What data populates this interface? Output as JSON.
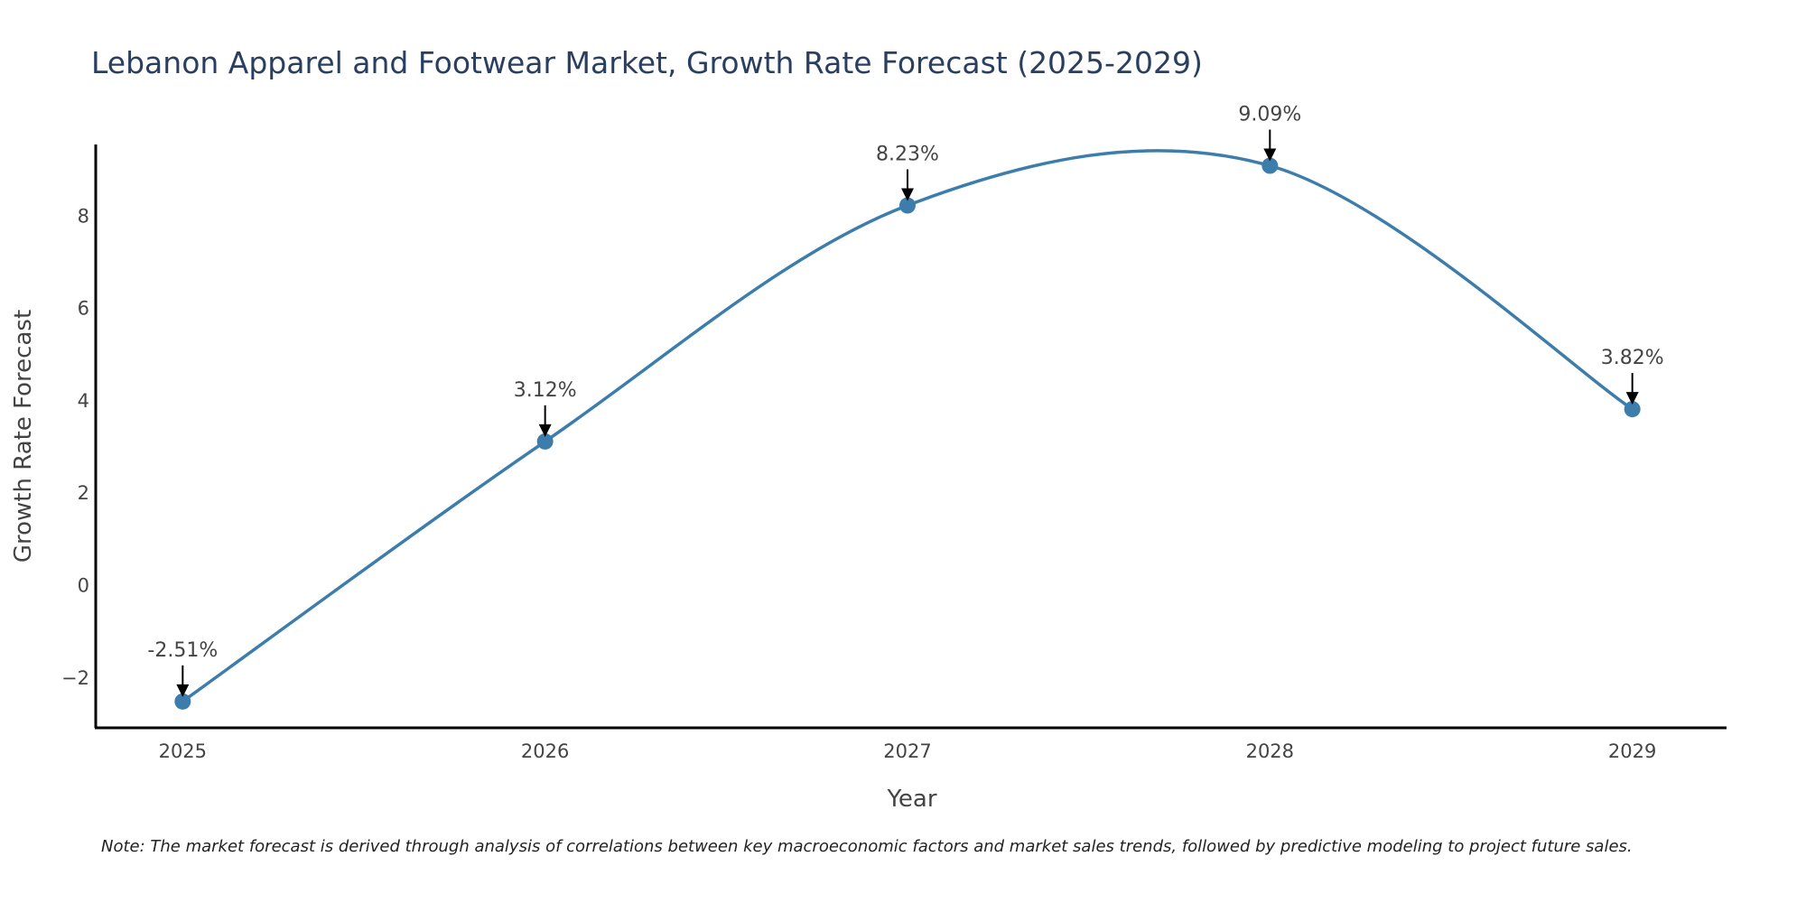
{
  "chart_data": {
    "type": "line",
    "title": "Lebanon Apparel and Footwear Market, Growth Rate Forecast (2025-2029)",
    "xlabel": "Year",
    "ylabel": "Growth Rate Forecast",
    "categories": [
      "2025",
      "2026",
      "2027",
      "2028",
      "2029"
    ],
    "x": [
      2025,
      2026,
      2027,
      2028,
      2029
    ],
    "values": [
      -2.51,
      3.12,
      8.23,
      9.09,
      3.82
    ],
    "annotations": [
      "-2.51%",
      "3.12%",
      "8.23%",
      "9.09%",
      "3.82%"
    ],
    "yticks": [
      -2,
      0,
      2,
      4,
      6,
      8
    ],
    "ytick_labels": [
      "−2",
      "0",
      "2",
      "4",
      "6",
      "8"
    ],
    "ylim": [
      -3.08,
      9.55
    ],
    "xlim": [
      2024.76,
      2029.26
    ],
    "line_color": "#3d7dab",
    "marker_color": "#3d7dab",
    "grid": false,
    "legend": "none",
    "note": "Note: The market forecast is derived through analysis of correlations between key macroeconomic factors and market sales trends, followed by predictive modeling to project future sales."
  }
}
